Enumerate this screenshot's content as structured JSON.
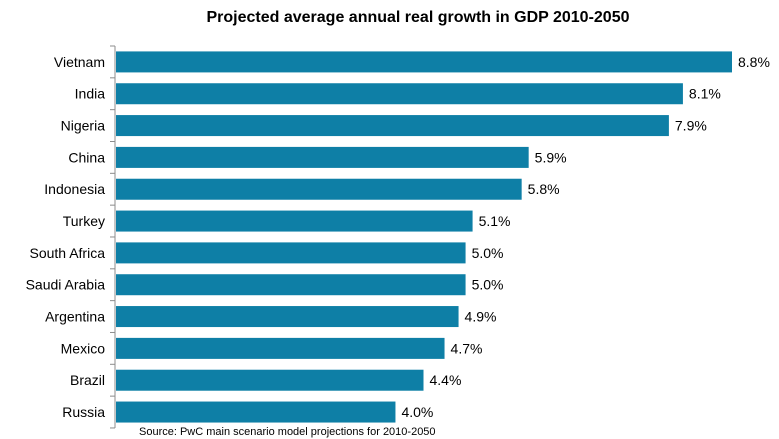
{
  "chart_data": {
    "type": "bar",
    "orientation": "horizontal",
    "title": "Projected average annual real growth in GDP 2010-2050",
    "categories": [
      "Vietnam",
      "India",
      "Nigeria",
      "China",
      "Indonesia",
      "Turkey",
      "South Africa",
      "Saudi Arabia",
      "Argentina",
      "Mexico",
      "Brazil",
      "Russia"
    ],
    "values": [
      8.8,
      8.1,
      7.9,
      5.9,
      5.8,
      5.1,
      5.0,
      5.0,
      4.9,
      4.7,
      4.4,
      4.0
    ],
    "value_labels": [
      "8.8%",
      "8.1%",
      "7.9%",
      "5.9%",
      "5.8%",
      "5.1%",
      "5.0%",
      "5.0%",
      "4.9%",
      "4.7%",
      "4.4%",
      "4.0%"
    ],
    "xlim": [
      0,
      8.8
    ],
    "grid": false,
    "legend": "none",
    "bar_color": "#0E7FA6",
    "source": "Source: PwC main scenario model projections for 2010-2050"
  }
}
